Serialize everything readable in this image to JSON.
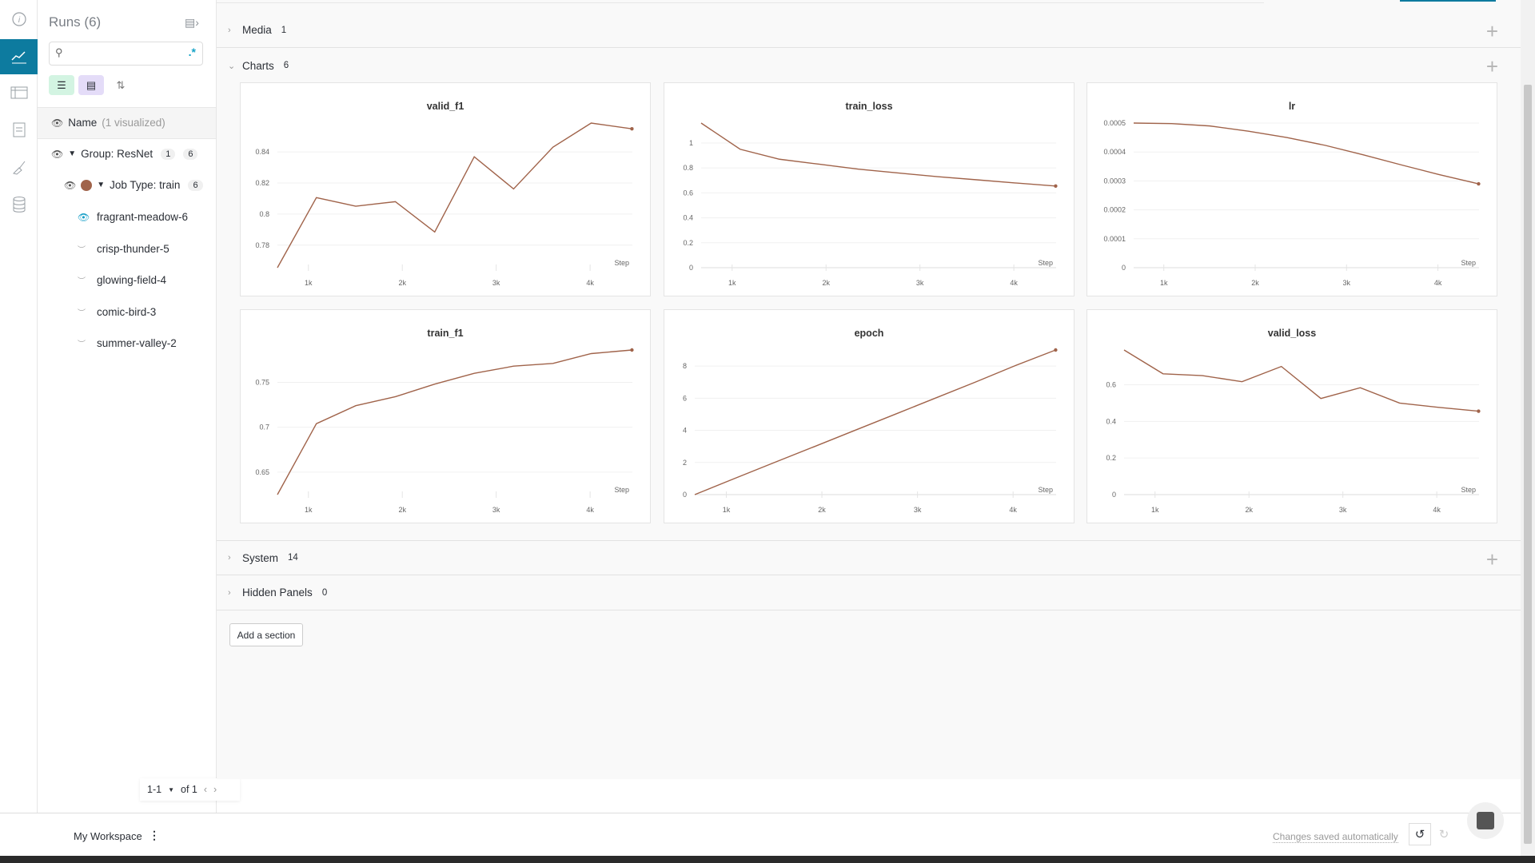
{
  "rail": {
    "icons": [
      "info-icon",
      "charts-icon",
      "table-icon",
      "report-icon",
      "sweep-icon",
      "artifacts-icon"
    ],
    "active": 1
  },
  "runs": {
    "title": "Runs (6)",
    "search_placeholder": "",
    "regex": ".*",
    "name_header": "Name",
    "name_visualized": "(1 visualized)",
    "group": {
      "label": "Group: ResNet",
      "visualized": "1",
      "count": "6"
    },
    "job": {
      "label": "Job Type: train",
      "count": "6",
      "color": "#a0634a"
    },
    "items": [
      {
        "name": "fragrant-meadow-6",
        "visible": true
      },
      {
        "name": "crisp-thunder-5",
        "visible": false
      },
      {
        "name": "glowing-field-4",
        "visible": false
      },
      {
        "name": "comic-bird-3",
        "visible": false
      },
      {
        "name": "summer-valley-2",
        "visible": false
      }
    ],
    "pager": {
      "range": "1-1",
      "of": "of 1"
    }
  },
  "sections": {
    "media": {
      "label": "Media",
      "count": "1"
    },
    "charts": {
      "label": "Charts",
      "count": "6"
    },
    "system": {
      "label": "System",
      "count": "14"
    },
    "hidden": {
      "label": "Hidden Panels",
      "count": "0"
    },
    "add_section": "Add a section"
  },
  "footer": {
    "workspace": "My Workspace",
    "saved": "Changes saved automatically"
  },
  "colors": {
    "accent": "#0d7b9f",
    "line": "#a0634a"
  },
  "chart_data": [
    {
      "type": "line",
      "title": "valid_f1",
      "xlabel": "Step",
      "xticks": [
        "1k",
        "2k",
        "3k",
        "4k"
      ],
      "xlim": [
        670,
        4450
      ],
      "ylim": [
        0.7655,
        0.8586
      ],
      "yticks": [
        0.78,
        0.8,
        0.82,
        0.84
      ],
      "x": [
        670,
        1085,
        1504,
        1926,
        2345,
        2766,
        3185,
        3604,
        4011,
        4445
      ],
      "y": [
        0.7655,
        0.8106,
        0.8051,
        0.808,
        0.7885,
        0.8369,
        0.8162,
        0.8431,
        0.8586,
        0.8549
      ]
    },
    {
      "type": "line",
      "title": "train_loss",
      "xlabel": "Step",
      "xticks": [
        "1k",
        "2k",
        "3k",
        "4k"
      ],
      "xlim": [
        670,
        4450
      ],
      "ylim": [
        0,
        1.16
      ],
      "yticks": [
        0,
        0.2,
        0.4,
        0.6,
        0.8,
        1
      ],
      "x": [
        670,
        1085,
        1504,
        1926,
        2345,
        2766,
        3185,
        3604,
        4011,
        4445
      ],
      "y": [
        1.16,
        0.95,
        0.87,
        0.83,
        0.79,
        0.76,
        0.73,
        0.705,
        0.68,
        0.655
      ]
    },
    {
      "type": "line",
      "title": "lr",
      "xlabel": "Step",
      "xticks": [
        "1k",
        "2k",
        "3k",
        "4k"
      ],
      "xlim": [
        670,
        4450
      ],
      "ylim": [
        0,
        0.0005
      ],
      "yticks": [
        0,
        0.0001,
        0.0002,
        0.0003,
        0.0004,
        0.0005
      ],
      "x": [
        670,
        1085,
        1504,
        1926,
        2345,
        2766,
        3185,
        3604,
        4011,
        4445
      ],
      "y": [
        0.0005,
        0.000498,
        0.00049,
        0.000472,
        0.00045,
        0.000423,
        0.00039,
        0.000355,
        0.000322,
        0.00029
      ]
    },
    {
      "type": "line",
      "title": "train_f1",
      "xlabel": "Step",
      "xticks": [
        "1k",
        "2k",
        "3k",
        "4k"
      ],
      "xlim": [
        670,
        4450
      ],
      "ylim": [
        0.625,
        0.786
      ],
      "yticks": [
        0.65,
        0.7,
        0.75
      ],
      "x": [
        670,
        1085,
        1504,
        1926,
        2345,
        2766,
        3185,
        3604,
        4011,
        4445
      ],
      "y": [
        0.625,
        0.704,
        0.724,
        0.734,
        0.748,
        0.76,
        0.768,
        0.771,
        0.782,
        0.786
      ]
    },
    {
      "type": "line",
      "title": "epoch",
      "xlabel": "Step",
      "xticks": [
        "1k",
        "2k",
        "3k",
        "4k"
      ],
      "xlim": [
        670,
        4450
      ],
      "ylim": [
        0,
        9
      ],
      "yticks": [
        0,
        2,
        4,
        6,
        8
      ],
      "x": [
        670,
        1085,
        1504,
        1926,
        2345,
        2766,
        3185,
        3604,
        4011,
        4445
      ],
      "y": [
        0,
        1,
        2,
        3,
        4,
        5,
        6,
        7,
        8,
        9
      ]
    },
    {
      "type": "line",
      "title": "valid_loss",
      "xlabel": "Step",
      "xticks": [
        "1k",
        "2k",
        "3k",
        "4k"
      ],
      "xlim": [
        670,
        4450
      ],
      "ylim": [
        0,
        0.79
      ],
      "yticks": [
        0,
        0.2,
        0.4,
        0.6
      ],
      "x": [
        670,
        1085,
        1504,
        1926,
        2345,
        2766,
        3185,
        3604,
        4011,
        4445
      ],
      "y": [
        0.79,
        0.66,
        0.65,
        0.617,
        0.7,
        0.525,
        0.584,
        0.5,
        0.477,
        0.456
      ]
    }
  ]
}
